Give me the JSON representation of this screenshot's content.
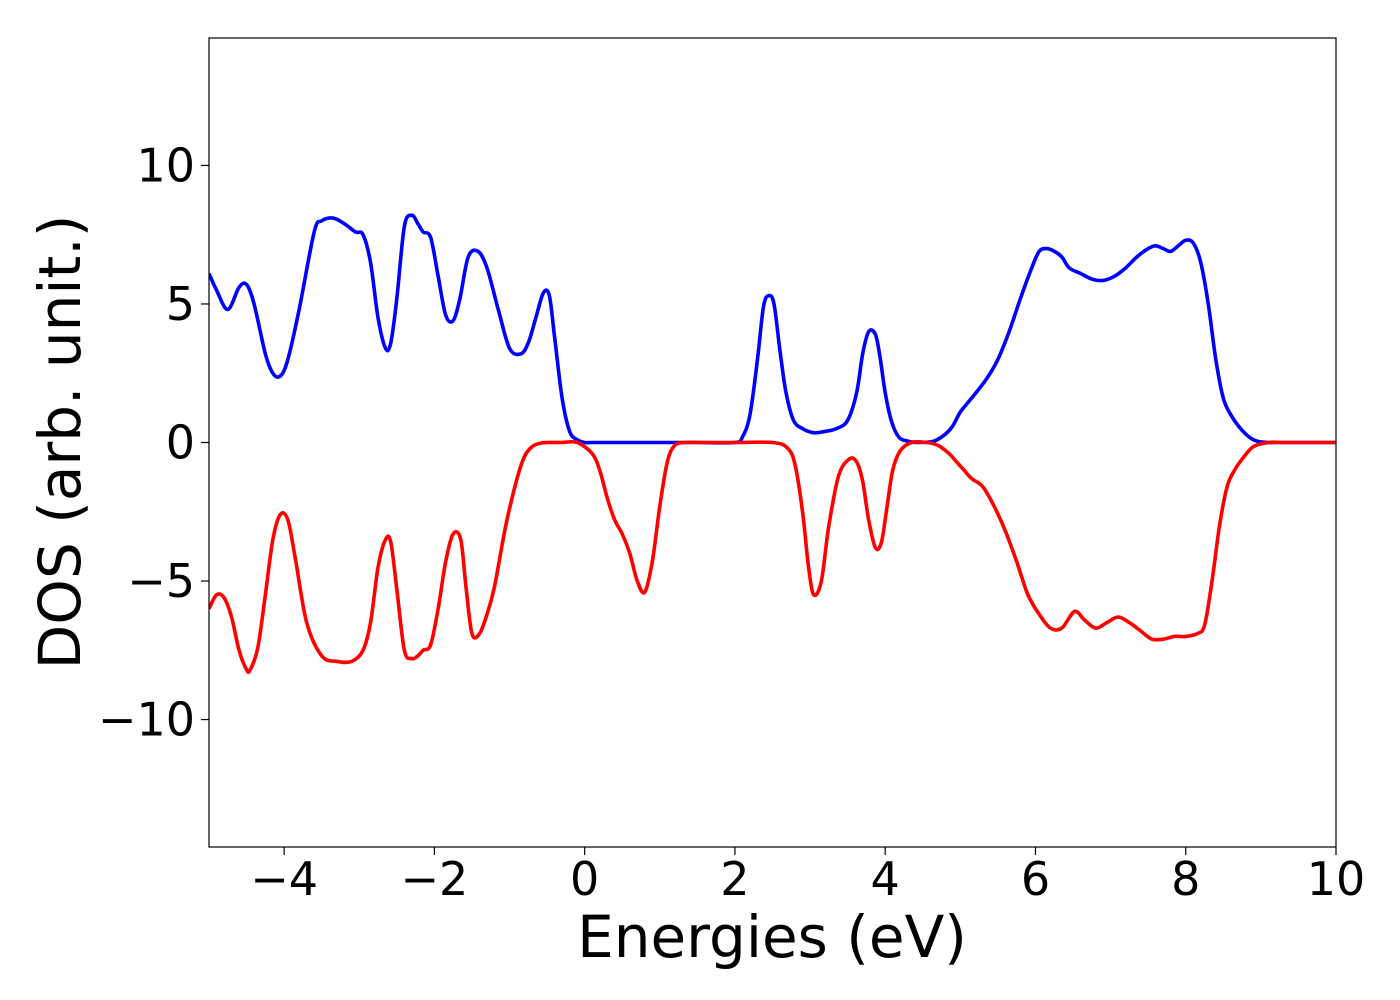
{
  "chart_data": {
    "type": "line",
    "title": "",
    "xlabel": "Energies (eV)",
    "ylabel": "DOS (arb. unit.)",
    "xlim": [
      -5,
      10
    ],
    "ylim": [
      -14.6,
      14.6
    ],
    "xticks": [
      -4,
      -2,
      0,
      2,
      4,
      6,
      8,
      10
    ],
    "xtick_labels": [
      "−4",
      "−2",
      "0",
      "2",
      "4",
      "6",
      "8",
      "10"
    ],
    "yticks": [
      10,
      5,
      0,
      -5,
      -10
    ],
    "ytick_labels": [
      "10",
      "5",
      "0",
      "−5",
      "−10"
    ],
    "grid": false,
    "legend": "none",
    "series": [
      {
        "color": "#0000ff",
        "x": [
          -5.0,
          -4.9,
          -4.75,
          -4.6,
          -4.5,
          -4.4,
          -4.25,
          -4.15,
          -4.05,
          -3.95,
          -3.8,
          -3.6,
          -3.5,
          -3.35,
          -3.2,
          -3.05,
          -2.95,
          -2.85,
          -2.75,
          -2.65,
          -2.58,
          -2.5,
          -2.4,
          -2.3,
          -2.22,
          -2.15,
          -2.05,
          -1.95,
          -1.85,
          -1.75,
          -1.66,
          -1.55,
          -1.42,
          -1.3,
          -1.15,
          -1.0,
          -0.85,
          -0.75,
          -0.65,
          -0.55,
          -0.47,
          -0.4,
          -0.3,
          -0.2,
          -0.1,
          0.0,
          0.1,
          0.5,
          1.0,
          1.5,
          2.0,
          2.1,
          2.2,
          2.3,
          2.38,
          2.45,
          2.52,
          2.6,
          2.68,
          2.78,
          2.9,
          3.05,
          3.2,
          3.35,
          3.5,
          3.62,
          3.7,
          3.78,
          3.87,
          3.93,
          4.0,
          4.08,
          4.18,
          4.3,
          4.45,
          4.65,
          4.8,
          4.9,
          5.0,
          5.15,
          5.35,
          5.5,
          5.65,
          5.8,
          5.95,
          6.05,
          6.15,
          6.25,
          6.35,
          6.45,
          6.6,
          6.75,
          6.9,
          7.05,
          7.2,
          7.35,
          7.5,
          7.6,
          7.7,
          7.8,
          7.9,
          8.0,
          8.1,
          8.2,
          8.3,
          8.4,
          8.5,
          8.6,
          8.7,
          8.8,
          8.9,
          9.0,
          9.1,
          9.2,
          9.3,
          9.5,
          9.8,
          10.0
        ],
        "y": [
          6.1,
          5.5,
          4.8,
          5.6,
          5.7,
          5.0,
          3.2,
          2.5,
          2.4,
          3.0,
          4.8,
          7.6,
          8.0,
          8.1,
          7.9,
          7.6,
          7.5,
          6.5,
          4.5,
          3.4,
          3.6,
          5.2,
          7.8,
          8.2,
          7.9,
          7.6,
          7.4,
          6.0,
          4.6,
          4.4,
          5.2,
          6.7,
          6.9,
          6.3,
          4.8,
          3.4,
          3.2,
          3.6,
          4.5,
          5.4,
          5.3,
          3.8,
          1.6,
          0.4,
          0.1,
          0.0,
          0.0,
          0.0,
          0.0,
          0.0,
          0.0,
          0.2,
          1.0,
          3.0,
          4.9,
          5.3,
          5.0,
          3.3,
          1.8,
          0.8,
          0.5,
          0.35,
          0.4,
          0.5,
          0.8,
          1.8,
          3.2,
          4.0,
          3.9,
          3.1,
          1.8,
          0.8,
          0.2,
          0.05,
          0.0,
          0.05,
          0.3,
          0.6,
          1.1,
          1.6,
          2.3,
          3.0,
          4.0,
          5.2,
          6.3,
          6.9,
          7.0,
          6.9,
          6.7,
          6.3,
          6.1,
          5.9,
          5.85,
          6.0,
          6.3,
          6.7,
          7.0,
          7.1,
          7.0,
          6.9,
          7.1,
          7.3,
          7.2,
          6.5,
          5.0,
          3.0,
          1.6,
          1.0,
          0.6,
          0.3,
          0.1,
          0.02,
          0.0,
          0.0,
          0.0,
          0.0,
          0.0,
          0.0
        ]
      },
      {
        "color": "#ff0000",
        "x": [
          -5.0,
          -4.9,
          -4.8,
          -4.7,
          -4.6,
          -4.5,
          -4.45,
          -4.35,
          -4.25,
          -4.15,
          -4.05,
          -3.95,
          -3.85,
          -3.7,
          -3.5,
          -3.3,
          -3.1,
          -2.95,
          -2.85,
          -2.75,
          -2.65,
          -2.58,
          -2.5,
          -2.4,
          -2.3,
          -2.22,
          -2.15,
          -2.05,
          -1.95,
          -1.85,
          -1.75,
          -1.65,
          -1.58,
          -1.5,
          -1.4,
          -1.3,
          -1.2,
          -1.05,
          -0.9,
          -0.8,
          -0.7,
          -0.6,
          -0.5,
          -0.3,
          -0.1,
          0.1,
          0.2,
          0.3,
          0.4,
          0.5,
          0.6,
          0.7,
          0.8,
          0.9,
          1.0,
          1.1,
          1.2,
          1.35,
          1.6,
          2.0,
          2.5,
          2.7,
          2.8,
          2.9,
          2.98,
          3.05,
          3.15,
          3.25,
          3.38,
          3.52,
          3.62,
          3.7,
          3.78,
          3.87,
          3.95,
          4.02,
          4.1,
          4.2,
          4.35,
          4.55,
          4.7,
          4.85,
          4.95,
          5.05,
          5.15,
          5.3,
          5.45,
          5.6,
          5.75,
          5.9,
          6.05,
          6.2,
          6.35,
          6.52,
          6.65,
          6.8,
          6.95,
          7.1,
          7.25,
          7.4,
          7.55,
          7.7,
          7.85,
          8.0,
          8.15,
          8.25,
          8.35,
          8.45,
          8.55,
          8.65,
          8.75,
          8.9,
          9.1,
          9.3,
          9.6,
          10.0
        ],
        "y": [
          -6.0,
          -5.5,
          -5.6,
          -6.3,
          -7.5,
          -8.2,
          -8.2,
          -7.4,
          -5.5,
          -3.5,
          -2.6,
          -2.8,
          -4.2,
          -6.5,
          -7.7,
          -7.9,
          -7.9,
          -7.5,
          -6.5,
          -4.5,
          -3.5,
          -3.6,
          -5.3,
          -7.5,
          -7.8,
          -7.7,
          -7.5,
          -7.3,
          -6.0,
          -4.3,
          -3.3,
          -3.5,
          -5.2,
          -6.9,
          -6.9,
          -6.2,
          -5.2,
          -3.0,
          -1.3,
          -0.5,
          -0.15,
          -0.03,
          0.0,
          0.0,
          0.0,
          -0.4,
          -1.0,
          -2.0,
          -2.8,
          -3.3,
          -4.0,
          -5.0,
          -5.4,
          -4.3,
          -2.3,
          -0.7,
          -0.1,
          0.0,
          0.0,
          0.0,
          0.0,
          -0.2,
          -0.8,
          -2.5,
          -4.5,
          -5.5,
          -5.0,
          -3.0,
          -1.2,
          -0.6,
          -0.7,
          -1.4,
          -2.8,
          -3.8,
          -3.6,
          -2.4,
          -1.0,
          -0.3,
          0.0,
          0.0,
          -0.1,
          -0.4,
          -0.7,
          -1.0,
          -1.3,
          -1.6,
          -2.3,
          -3.2,
          -4.3,
          -5.5,
          -6.2,
          -6.7,
          -6.7,
          -6.1,
          -6.4,
          -6.7,
          -6.5,
          -6.3,
          -6.5,
          -6.8,
          -7.1,
          -7.1,
          -7.0,
          -7.0,
          -6.9,
          -6.6,
          -5.0,
          -3.0,
          -1.6,
          -1.0,
          -0.6,
          -0.15,
          0.0,
          0.0,
          0.0,
          0.0
        ]
      }
    ]
  }
}
